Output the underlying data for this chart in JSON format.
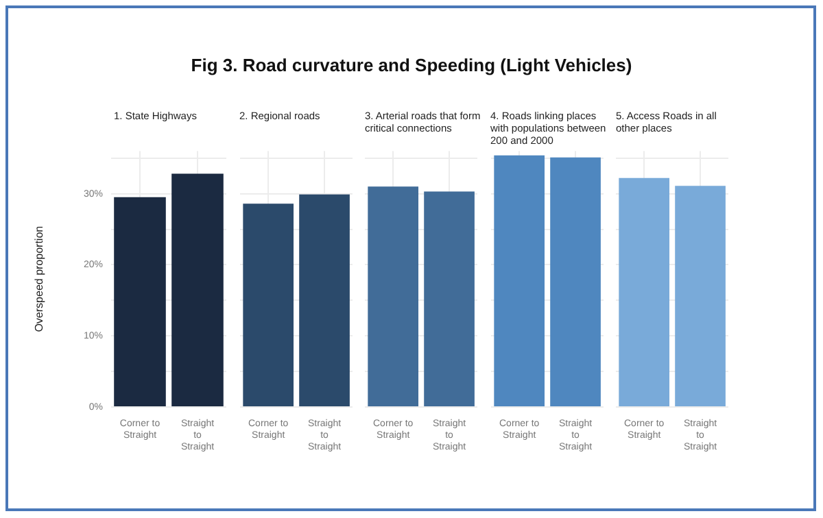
{
  "chart_data": [
    {
      "type": "bar",
      "title": "Fig 3. Road curvature and Speeding (Light Vehicles)",
      "subtitle": "1. State Highways",
      "ylabel": "Overspeed proportion",
      "categories": [
        "Corner to Straight",
        "Straight to Straight"
      ],
      "values": [
        29.5,
        32.8
      ],
      "color": "#1b2a41",
      "ylim": [
        0,
        36
      ],
      "yticks": [
        {
          "value": 0,
          "label": "0%"
        },
        {
          "value": 5,
          "label": null
        },
        {
          "value": 10,
          "label": "10%"
        },
        {
          "value": 15,
          "label": null
        },
        {
          "value": 20,
          "label": "20%"
        },
        {
          "value": 25,
          "label": null
        },
        {
          "value": 30,
          "label": "30%"
        },
        {
          "value": 35,
          "label": null
        }
      ],
      "grid": true
    },
    {
      "type": "bar",
      "subtitle": "2. Regional roads",
      "categories": [
        "Corner to Straight",
        "Straight to Straight"
      ],
      "values": [
        28.6,
        29.9
      ],
      "color": "#2b4a6b",
      "ylim": [
        0,
        36
      ],
      "yticks": [
        {
          "value": 0,
          "label": null
        },
        {
          "value": 5,
          "label": null
        },
        {
          "value": 10,
          "label": null
        },
        {
          "value": 15,
          "label": null
        },
        {
          "value": 20,
          "label": null
        },
        {
          "value": 25,
          "label": null
        },
        {
          "value": 30,
          "label": null
        },
        {
          "value": 35,
          "label": null
        }
      ],
      "grid": true,
      "tick_labels": "x"
    },
    {
      "type": "bar",
      "subtitle": "3. Arterial roads that form critical connections",
      "categories": [
        "Corner to Straight",
        "Straight to Straight"
      ],
      "values": [
        31.0,
        30.3
      ],
      "color": "#416c98",
      "ylim": [
        0,
        36
      ],
      "yticks": [
        {
          "value": 0,
          "label": null
        },
        {
          "value": 5,
          "label": null
        },
        {
          "value": 10,
          "label": null
        },
        {
          "value": 15,
          "label": null
        },
        {
          "value": 20,
          "label": null
        },
        {
          "value": 25,
          "label": null
        },
        {
          "value": 30,
          "label": null
        },
        {
          "value": 35,
          "label": null
        }
      ],
      "grid": true,
      "tick_labels": "x"
    },
    {
      "type": "bar",
      "subtitle": "4. Roads linking places with populations between 200 and 2000",
      "categories": [
        "Corner to Straight",
        "Straight to Straight"
      ],
      "values": [
        35.4,
        35.1
      ],
      "color": "#4f87bf",
      "ylim": [
        0,
        36
      ],
      "yticks": [
        {
          "value": 0,
          "label": null
        },
        {
          "value": 5,
          "label": null
        },
        {
          "value": 10,
          "label": null
        },
        {
          "value": 15,
          "label": null
        },
        {
          "value": 20,
          "label": null
        },
        {
          "value": 25,
          "label": null
        },
        {
          "value": 30,
          "label": null
        },
        {
          "value": 35,
          "label": null
        }
      ],
      "grid": true,
      "tick_labels": "x"
    },
    {
      "type": "bar",
      "subtitle": "5. Access Roads in all other places",
      "categories": [
        "Corner to Straight",
        "Straight to Straight"
      ],
      "values": [
        32.2,
        31.1
      ],
      "color": "#79aad9",
      "ylim": [
        0,
        36
      ],
      "yticks": [
        {
          "value": 0,
          "label": null
        },
        {
          "value": 5,
          "label": null
        },
        {
          "value": 10,
          "label": null
        },
        {
          "value": 15,
          "label": null
        },
        {
          "value": 20,
          "label": null
        },
        {
          "value": 25,
          "label": null
        },
        {
          "value": 30,
          "label": null
        },
        {
          "value": 35,
          "label": null
        }
      ],
      "grid": true,
      "tick_labels": "x"
    }
  ]
}
